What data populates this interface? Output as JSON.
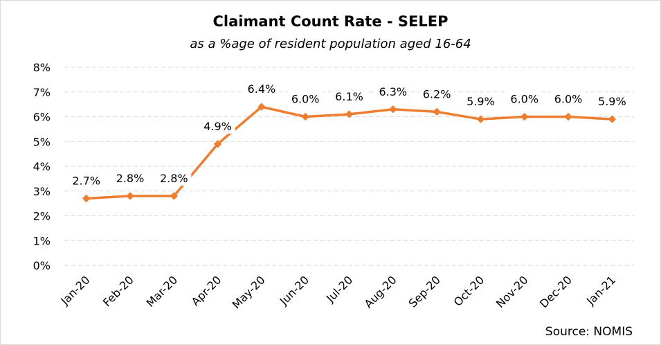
{
  "chart_data": {
    "type": "line",
    "title": "Claimant Count Rate - SELEP",
    "subtitle": "as a %age of resident population aged 16-64",
    "source": "Source: NOMIS",
    "categories": [
      "Jan-20",
      "Feb-20",
      "Mar-20",
      "Apr-20",
      "May-20",
      "Jun-20",
      "Jul-20",
      "Aug-20",
      "Sep-20",
      "Oct-20",
      "Nov-20",
      "Dec-20",
      "Jan-21"
    ],
    "series": [
      {
        "values": [
          2.7,
          2.8,
          2.8,
          4.9,
          6.4,
          6.0,
          6.1,
          6.3,
          6.2,
          5.9,
          6.0,
          6.0,
          5.9
        ],
        "labels": [
          "2.7%",
          "2.8%",
          "2.8%",
          "4.9%",
          "6.4%",
          "6.0%",
          "6.1%",
          "6.3%",
          "6.2%",
          "5.9%",
          "6.0%",
          "6.0%",
          "5.9%"
        ],
        "color": "#ED7D31"
      }
    ],
    "ylim": [
      0,
      8
    ],
    "yticks": [
      "0%",
      "1%",
      "2%",
      "3%",
      "4%",
      "5%",
      "6%",
      "7%",
      "8%"
    ],
    "grid": "horizontal dashed",
    "legend": "none"
  }
}
